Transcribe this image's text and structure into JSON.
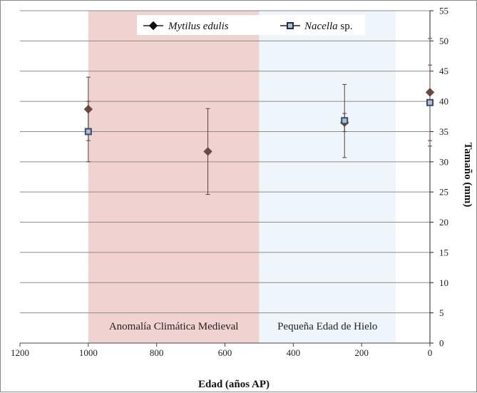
{
  "chart_data": {
    "type": "scatter",
    "xlabel": "Edad (años AP)",
    "ylabel": "Tamaño (mm)",
    "xlim": [
      1200,
      0
    ],
    "ylim": [
      0,
      55
    ],
    "x_ticks": [
      1200,
      1000,
      800,
      600,
      400,
      200,
      0
    ],
    "y_ticks": [
      0,
      5,
      10,
      15,
      20,
      25,
      30,
      35,
      40,
      45,
      50,
      55
    ],
    "y_axis_position": "right",
    "grid": "horizontal",
    "legend_position": "top",
    "bands": [
      {
        "label": "Anomalía Climática Medieval",
        "x_start": 1000,
        "x_end": 500,
        "color": "#f0d2d0"
      },
      {
        "label": "Pequeña Edad de Hielo",
        "x_start": 500,
        "x_end": 100,
        "color": "#eef5fb"
      }
    ],
    "series": [
      {
        "name": "Mytilus edulis",
        "marker": "diamond",
        "color": "#6b4a44",
        "points": [
          {
            "x": 1000,
            "y": 38.7,
            "err_low": 30.0,
            "err_high": 44.0
          },
          {
            "x": 650,
            "y": 31.7,
            "err_low": 24.6,
            "err_high": 38.8
          },
          {
            "x": 250,
            "y": 36.5,
            "err_low": 30.7,
            "err_high": 42.8
          },
          {
            "x": 0,
            "y": 41.5,
            "err_low": 32.6,
            "err_high": 50.4
          }
        ]
      },
      {
        "name": "Nacella sp.",
        "marker": "square",
        "color": "#3a4e6b",
        "points": [
          {
            "x": 1000,
            "y": 35.0,
            "err_low": 33.5,
            "err_high": 40.0
          },
          {
            "x": 250,
            "y": 36.8,
            "err_low": 35.0,
            "err_high": 38.0
          },
          {
            "x": 0,
            "y": 39.8,
            "err_low": 33.5,
            "err_high": 46.0
          }
        ]
      }
    ]
  }
}
